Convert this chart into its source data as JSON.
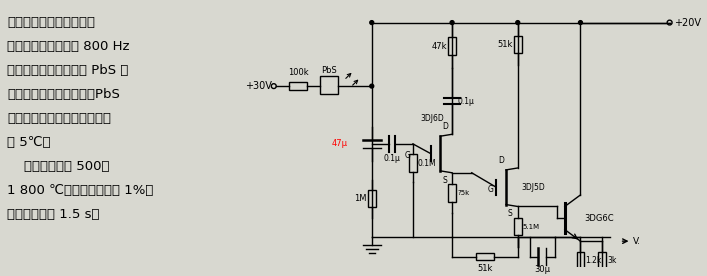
{
  "bg_color": "#d8d8d0",
  "text_color": "#000000",
  "fig_width": 7.07,
  "fig_height": 2.76,
  "dpi": 100,
  "chinese_text_lines": [
    "被测物体的辐射，经带滤",
    "光片的调制盘调制成 800 Hz",
    "光信号。调制光入射进 PbS 光",
    "敏电阔后转换为电信号，PbS",
    "为恒功率偶置，其工作温度约",
    "为 5℃。",
    "    仪器测温范围 500～",
    "1 800 ℃；测温误差小于 1%；",
    "反应速度小于 1.5 s。"
  ]
}
